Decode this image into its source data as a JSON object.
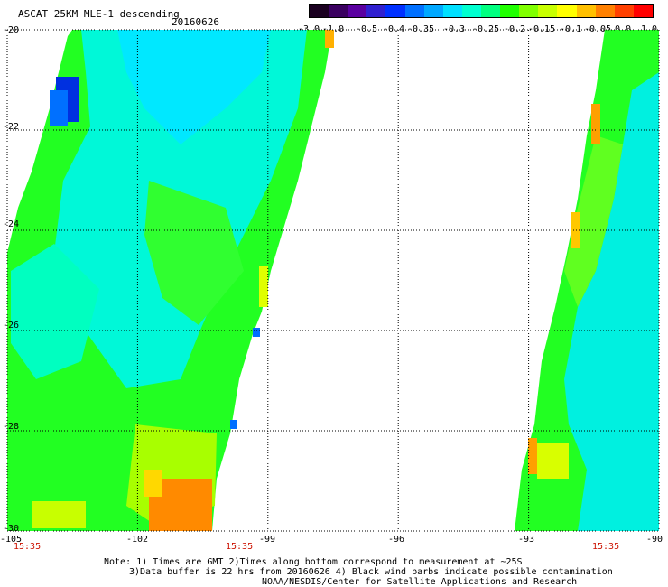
{
  "title": "ASCAT 25KM MLE-1 descending",
  "date": "20160626",
  "colorbar": {
    "ticks": [
      "-3.0",
      "-1.0",
      "-0.5",
      "-0.4",
      "-0.35",
      "-0.3",
      "-0.25",
      "-0.2",
      "-0.15",
      "-0.1",
      "-0.05",
      "0.0",
      "1.0"
    ],
    "colors": [
      "#1a0020",
      "#3a0060",
      "#5a00a0",
      "#3020d0",
      "#0030ff",
      "#0070ff",
      "#00a8ff",
      "#00e0ff",
      "#00ffd0",
      "#00ff80",
      "#20ff00",
      "#80ff00",
      "#c8ff00",
      "#ffff00",
      "#ffc000",
      "#ff8000",
      "#ff4000",
      "#ff0000"
    ]
  },
  "axes": {
    "y_ticks": [
      "-20",
      "-22",
      "-24",
      "-26",
      "-28",
      "-30"
    ],
    "x_ticks": [
      "-105",
      "-102",
      "-99",
      "-96",
      "-93",
      "-90"
    ],
    "time_labels": [
      "15:35",
      "15:35",
      "15:35"
    ]
  },
  "notes": {
    "line1": "Note: 1) Times are GMT 2)Times along bottom correspond to measurement at ~25S",
    "line2": "3)Data buffer is 22 hrs from 20160626 4) Black wind barbs indicate possible contamination",
    "line3": "NOAA/NESDIS/Center for Satellite Applications and Research"
  }
}
